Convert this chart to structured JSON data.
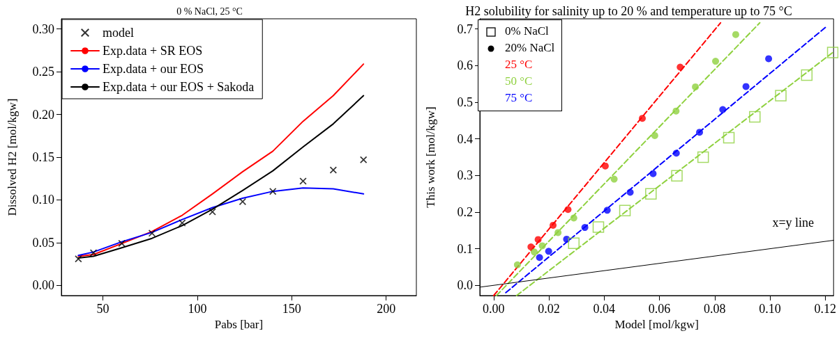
{
  "chart_data": [
    {
      "type": "line",
      "title": "0 % NaCl, 25 °C",
      "xlabel": "Pabs [bar]",
      "ylabel": "Dissolved H2 [mol/kgw]",
      "x": [
        37,
        45,
        60,
        76,
        92,
        108,
        124,
        140,
        156,
        172,
        188
      ],
      "xlim": [
        28,
        216
      ],
      "xticks": [
        50,
        100,
        150,
        200
      ],
      "ylim": [
        -0.012,
        0.312
      ],
      "yticks": [
        {
          "value": 0,
          "label": "0.00"
        },
        {
          "value": 0.05,
          "label": "0.05"
        },
        {
          "value": 0.1,
          "label": "0.10"
        },
        {
          "value": 0.15,
          "label": "0.15"
        },
        {
          "value": 0.2,
          "label": "0.20"
        },
        {
          "value": 0.25,
          "label": "0.25"
        },
        {
          "value": 0.3,
          "label": "0.30"
        }
      ],
      "legend": "top left",
      "marker": "none",
      "line_style": "solid",
      "series": [
        {
          "name": "model",
          "type": "scatter",
          "marker": "cross",
          "color": "#000000",
          "values": [
            0.031,
            0.038,
            0.049,
            0.061,
            0.073,
            0.086,
            0.098,
            0.11,
            0.122,
            0.135,
            0.147
          ]
        },
        {
          "name": "Exp.data + SR EOS",
          "color": "#ff0000",
          "values": [
            0.034,
            0.036,
            0.049,
            0.063,
            0.082,
            0.107,
            0.133,
            0.157,
            0.192,
            0.222,
            0.259
          ]
        },
        {
          "name": "Exp.data + our EOS",
          "color": "#0000ff",
          "values": [
            0.035,
            0.039,
            0.051,
            0.062,
            0.077,
            0.091,
            0.102,
            0.11,
            0.114,
            0.113,
            0.107
          ]
        },
        {
          "name": "Exp.data + our EOS + Sakoda",
          "color": "#000000",
          "values": [
            0.032,
            0.034,
            0.044,
            0.055,
            0.07,
            0.089,
            0.111,
            0.134,
            0.162,
            0.189,
            0.222
          ]
        }
      ]
    },
    {
      "type": "scatter",
      "title": "H2 solubility for salinity up to 20 % and temperature up to 75 °C",
      "xlabel": "Model [mol/kgw]",
      "ylabel": "This work [mol/kgw]",
      "xlim": [
        -0.005,
        0.123
      ],
      "xticks": [
        {
          "value": 0,
          "label": "0.00"
        },
        {
          "value": 0.02,
          "label": "0.02"
        },
        {
          "value": 0.04,
          "label": "0.04"
        },
        {
          "value": 0.06,
          "label": "0.06"
        },
        {
          "value": 0.08,
          "label": "0.08"
        },
        {
          "value": 0.1,
          "label": "0.10"
        },
        {
          "value": 0.12,
          "label": "0.12"
        }
      ],
      "ylim": [
        -0.028,
        0.728
      ],
      "yticks": [
        {
          "value": 0,
          "label": "0.0"
        },
        {
          "value": 0.1,
          "label": "0.1"
        },
        {
          "value": 0.2,
          "label": "0.2"
        },
        {
          "value": 0.3,
          "label": "0.3"
        },
        {
          "value": 0.4,
          "label": "0.4"
        },
        {
          "value": 0.5,
          "label": "0.5"
        },
        {
          "value": 0.6,
          "label": "0.6"
        },
        {
          "value": 0.7,
          "label": "0.7"
        }
      ],
      "legend": "top left",
      "marker": "circle",
      "annotations": [
        "0% NaCl",
        "20% NaCl"
      ],
      "series": [
        {
          "name": "25 °C",
          "color": "#ff0000",
          "x": [
            0.0135,
            0.0161,
            0.0215,
            0.0269,
            0.0404,
            0.0538,
            0.0675
          ],
          "values": [
            0.105,
            0.125,
            0.164,
            0.207,
            0.326,
            0.456,
            0.596
          ]
        },
        {
          "name": "50 °C",
          "color": "#8fd13f",
          "x": [
            0.0086,
            0.0147,
            0.0176,
            0.0233,
            0.029,
            0.0436,
            0.0583,
            0.066,
            0.073,
            0.0803,
            0.0876
          ],
          "values": [
            0.056,
            0.091,
            0.108,
            0.144,
            0.184,
            0.29,
            0.409,
            0.476,
            0.542,
            0.612,
            0.685
          ]
        },
        {
          "name": "75 °C",
          "color": "#0000ff",
          "x": [
            0.0166,
            0.0199,
            0.0264,
            0.033,
            0.0411,
            0.0494,
            0.0577,
            0.0661,
            0.0745,
            0.0829,
            0.0913,
            0.0995
          ],
          "values": [
            0.076,
            0.093,
            0.126,
            0.158,
            0.205,
            0.254,
            0.305,
            0.361,
            0.418,
            0.48,
            0.543,
            0.619
          ]
        },
        {
          "marker": "square",
          "color": "#8fd13f",
          "x": [
            0.029,
            0.0379,
            0.0475,
            0.0569,
            0.0663,
            0.0758,
            0.0851,
            0.0945,
            0.1039,
            0.1133,
            0.1227
          ],
          "values": [
            0.115,
            0.159,
            0.204,
            0.25,
            0.299,
            0.35,
            0.403,
            0.46,
            0.518,
            0.574,
            0.636
          ]
        },
        {
          "type": "line",
          "marker": "none",
          "line_style": "dashed",
          "color": "#ff0000",
          "x": [
            0,
            0.0821
          ],
          "values": [
            -0.028,
            0.717
          ]
        },
        {
          "type": "line",
          "marker": "none",
          "line_style": "dashed",
          "color": "#8fd13f",
          "x": [
            0.001,
            0.0963
          ],
          "values": [
            -0.028,
            0.717
          ]
        },
        {
          "type": "line",
          "marker": "none",
          "line_style": "dashed",
          "color": "#0000ff",
          "x": [
            0.0044,
            0.1203
          ],
          "values": [
            -0.02,
            0.706
          ]
        },
        {
          "type": "line",
          "marker": "none",
          "line_style": "dashed",
          "color": "#8fd13f",
          "x": [
            0.0083,
            0.1227
          ],
          "values": [
            -0.028,
            0.636
          ]
        },
        {
          "name": "x=y line",
          "type": "line",
          "marker": "none",
          "line_style": "solid",
          "color": "#000000",
          "x": [
            -0.005,
            0.123
          ],
          "values": [
            -0.005,
            0.123
          ]
        }
      ]
    }
  ]
}
